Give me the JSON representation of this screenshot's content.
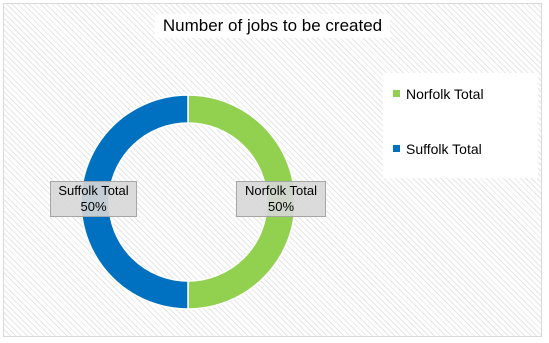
{
  "chart_data": {
    "type": "pie",
    "title": "Number of jobs to be created",
    "categories": [
      "Norfolk Total",
      "Suffolk Total"
    ],
    "values": [
      50,
      50
    ],
    "value_unit": "%",
    "colors": [
      "#92d050",
      "#0070c0"
    ],
    "donut": true,
    "legend_position": "right",
    "data_labels": [
      {
        "category": "Norfolk Total",
        "value": "50%"
      },
      {
        "category": "Suffolk Total",
        "value": "50%"
      }
    ]
  }
}
